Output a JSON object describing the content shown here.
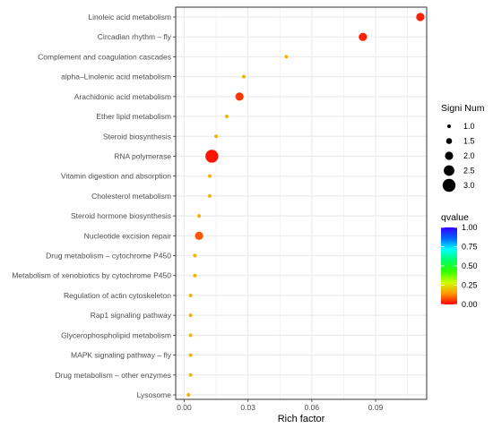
{
  "chart_data": {
    "type": "scatter",
    "xlabel": "Rich factor",
    "ylabel": "",
    "xlim": [
      -0.004,
      0.114
    ],
    "x_ticks": [
      0.0,
      0.03,
      0.06,
      0.09
    ],
    "x_tick_labels": [
      "0.00",
      "0.03",
      "0.06",
      "0.09"
    ],
    "grid": true,
    "points": [
      {
        "term": "Linoleic acid metabolism",
        "rich_factor": 0.111,
        "signi_num": 2,
        "qvalue": 0.03
      },
      {
        "term": "Circadian rhythm – fly",
        "rich_factor": 0.084,
        "signi_num": 2,
        "qvalue": 0.03
      },
      {
        "term": "Complement and coagulation cascades",
        "rich_factor": 0.048,
        "signi_num": 1,
        "qvalue": 0.18
      },
      {
        "term": "alpha–Linolenic acid metabolism",
        "rich_factor": 0.028,
        "signi_num": 1,
        "qvalue": 0.18
      },
      {
        "term": "Arachidonic acid metabolism",
        "rich_factor": 0.026,
        "signi_num": 2,
        "qvalue": 0.05
      },
      {
        "term": "Ether lipid metabolism",
        "rich_factor": 0.02,
        "signi_num": 1,
        "qvalue": 0.18
      },
      {
        "term": "Steroid biosynthesis",
        "rich_factor": 0.015,
        "signi_num": 1,
        "qvalue": 0.18
      },
      {
        "term": "RNA polymerase",
        "rich_factor": 0.013,
        "signi_num": 3,
        "qvalue": 0.02
      },
      {
        "term": "Vitamin digestion and absorption",
        "rich_factor": 0.012,
        "signi_num": 1,
        "qvalue": 0.18
      },
      {
        "term": "Cholesterol metabolism",
        "rich_factor": 0.012,
        "signi_num": 1,
        "qvalue": 0.18
      },
      {
        "term": "Steroid hormone biosynthesis",
        "rich_factor": 0.007,
        "signi_num": 1,
        "qvalue": 0.18
      },
      {
        "term": "Nucleotide excision repair",
        "rich_factor": 0.007,
        "signi_num": 2,
        "qvalue": 0.08
      },
      {
        "term": "Drug metabolism – cytochrome P450",
        "rich_factor": 0.005,
        "signi_num": 1,
        "qvalue": 0.18
      },
      {
        "term": "Metabolism of xenobiotics by cytochrome P450",
        "rich_factor": 0.005,
        "signi_num": 1,
        "qvalue": 0.18
      },
      {
        "term": "Regulation of actin cytoskeleton",
        "rich_factor": 0.003,
        "signi_num": 1,
        "qvalue": 0.18
      },
      {
        "term": "Rap1 signaling pathway",
        "rich_factor": 0.003,
        "signi_num": 1,
        "qvalue": 0.18
      },
      {
        "term": "Glycerophospholipid metabolism",
        "rich_factor": 0.003,
        "signi_num": 1,
        "qvalue": 0.18
      },
      {
        "term": "MAPK signaling pathway – fly",
        "rich_factor": 0.003,
        "signi_num": 1,
        "qvalue": 0.18
      },
      {
        "term": "Drug metabolism – other enzymes",
        "rich_factor": 0.003,
        "signi_num": 1,
        "qvalue": 0.18
      },
      {
        "term": "Lysosome",
        "rich_factor": 0.002,
        "signi_num": 1,
        "qvalue": 0.18
      }
    ],
    "legend_size": {
      "title": "Signi Num",
      "values": [
        1.0,
        1.5,
        2.0,
        2.5,
        3.0
      ],
      "labels": [
        "1.0",
        "1.5",
        "2.0",
        "2.5",
        "3.0"
      ]
    },
    "legend_color": {
      "title": "qvalue",
      "range": [
        0.0,
        1.0
      ],
      "ticks": [
        0.0,
        0.25,
        0.5,
        0.75,
        1.0
      ],
      "tick_labels": [
        "0.00",
        "0.25",
        "0.50",
        "0.75",
        "1.00"
      ],
      "colors": [
        "#ff0000",
        "#ff9900",
        "#ccff00",
        "#33ff00",
        "#00ff66",
        "#00ffff",
        "#0066ff",
        "#3300ff"
      ]
    },
    "legend_placement": "right",
    "panel_background": "#ffffff",
    "grid_color": "#ebebeb"
  }
}
